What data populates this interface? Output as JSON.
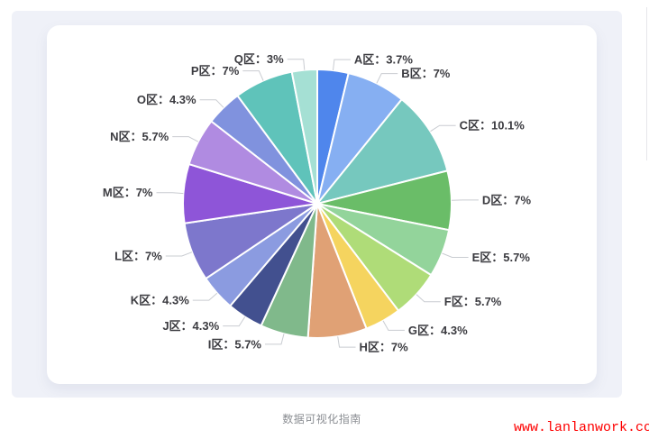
{
  "chart_data": {
    "type": "pie",
    "title": "",
    "categories": [
      "A区",
      "B区",
      "C区",
      "D区",
      "E区",
      "F区",
      "G区",
      "H区",
      "I区",
      "J区",
      "K区",
      "L区",
      "M区",
      "N区",
      "O区",
      "P区",
      "Q区"
    ],
    "values": [
      3.7,
      7,
      10.1,
      7,
      5.7,
      5.7,
      4.3,
      7,
      5.7,
      4.3,
      4.3,
      7,
      7,
      5.7,
      4.3,
      7,
      3
    ],
    "colors": [
      "#4F86EC",
      "#86AFF2",
      "#76C8BE",
      "#6ABD68",
      "#93D49B",
      "#AFDC78",
      "#F5D45F",
      "#E0A175",
      "#80B98B",
      "#42508F",
      "#8B9BE0",
      "#7D77CC",
      "#8E55D8",
      "#B08BE1",
      "#8092DE",
      "#5FC3BA",
      "#A5E0D4"
    ],
    "label_format": "{name}：{value}%",
    "labels_rendered": [
      "A区：3.7%",
      "B区：7%",
      "C区：10.1%",
      "D区：7%",
      "E区：5.7%",
      "F区：5.7%",
      "G区：4.3%",
      "H区：7%",
      "I区：5.7%",
      "J区：4.3%",
      "K区：4.3%",
      "L区：7%",
      "M区：7%",
      "N区：5.7%",
      "O区：4.3%",
      "P区：7%",
      "Q区：3%"
    ],
    "start_angle": "top",
    "direction": "clockwise",
    "legend": "none",
    "label_color": "#3b3b40",
    "leader_line_color": "#c9ccd1",
    "slice_border_color": "#ffffff"
  },
  "caption": "数据可视化指南",
  "watermark": {
    "text": "www.lanlanwork.com",
    "color": "#fe0000"
  }
}
